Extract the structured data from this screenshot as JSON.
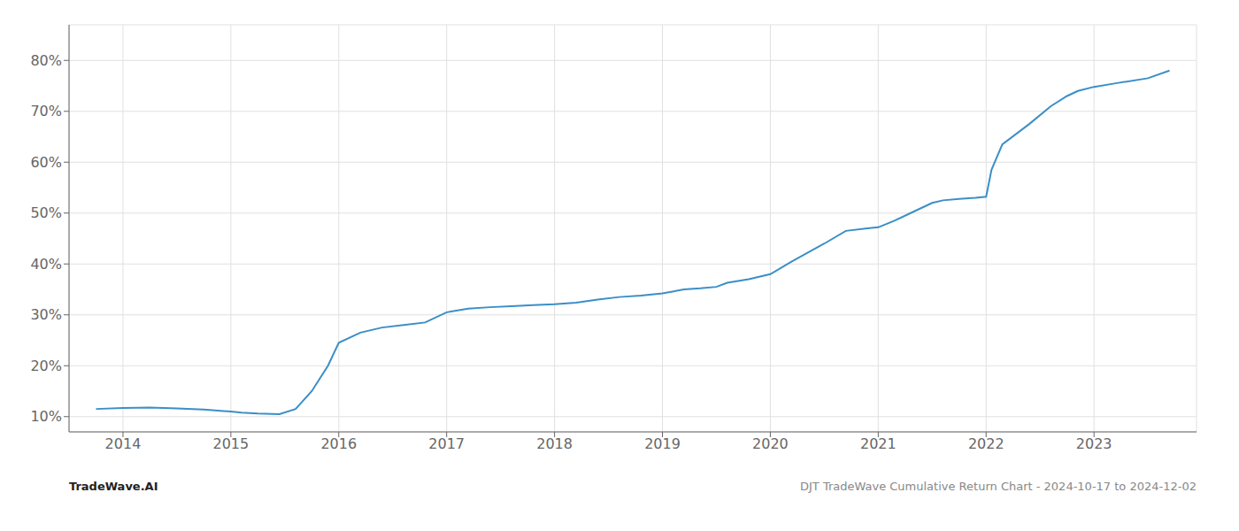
{
  "chart_data": {
    "type": "line",
    "annotations": [
      "TradeWave.AI",
      "DJT TradeWave Cumulative Return Chart - 2024-10-17 to 2024-12-02"
    ],
    "x": [
      2013.75,
      2014.0,
      2014.25,
      2014.5,
      2014.75,
      2015.0,
      2015.1,
      2015.25,
      2015.45,
      2015.6,
      2015.75,
      2015.9,
      2016.0,
      2016.2,
      2016.4,
      2016.6,
      2016.8,
      2017.0,
      2017.2,
      2017.4,
      2017.6,
      2017.8,
      2018.0,
      2018.2,
      2018.4,
      2018.6,
      2018.8,
      2019.0,
      2019.2,
      2019.35,
      2019.5,
      2019.6,
      2019.8,
      2020.0,
      2020.2,
      2020.5,
      2020.7,
      2020.9,
      2021.0,
      2021.15,
      2021.3,
      2021.5,
      2021.6,
      2021.75,
      2021.9,
      2022.0,
      2022.05,
      2022.15,
      2022.4,
      2022.6,
      2022.75,
      2022.85,
      2023.0,
      2023.2,
      2023.5,
      2023.7
    ],
    "values": [
      11.5,
      11.7,
      11.8,
      11.6,
      11.4,
      11.0,
      10.8,
      10.6,
      10.5,
      11.5,
      15.0,
      20.0,
      24.5,
      26.5,
      27.5,
      28.0,
      28.5,
      30.5,
      31.2,
      31.5,
      31.7,
      31.9,
      32.1,
      32.4,
      33.0,
      33.5,
      33.8,
      34.2,
      35.0,
      35.2,
      35.5,
      36.3,
      37.0,
      38.0,
      40.5,
      44.0,
      46.5,
      47.0,
      47.2,
      48.5,
      50.0,
      52.0,
      52.5,
      52.8,
      53.0,
      53.2,
      58.5,
      63.5,
      67.5,
      71.0,
      73.0,
      74.0,
      74.8,
      75.5,
      76.5,
      78.0
    ],
    "color": "#3a8fc7",
    "xlim": [
      2013.5,
      2023.95
    ],
    "ylim": [
      7,
      87
    ],
    "xticks": [
      2014,
      2015,
      2016,
      2017,
      2018,
      2019,
      2020,
      2021,
      2022,
      2023
    ],
    "yticks": [
      {
        "value": 10,
        "label": "10%"
      },
      {
        "value": 20,
        "label": "20%"
      },
      {
        "value": 30,
        "label": "30%"
      },
      {
        "value": 40,
        "label": "40%"
      },
      {
        "value": 50,
        "label": "50%"
      },
      {
        "value": 60,
        "label": "60%"
      },
      {
        "value": 70,
        "label": "70%"
      },
      {
        "value": 80,
        "label": "80%"
      }
    ],
    "grid": true
  }
}
